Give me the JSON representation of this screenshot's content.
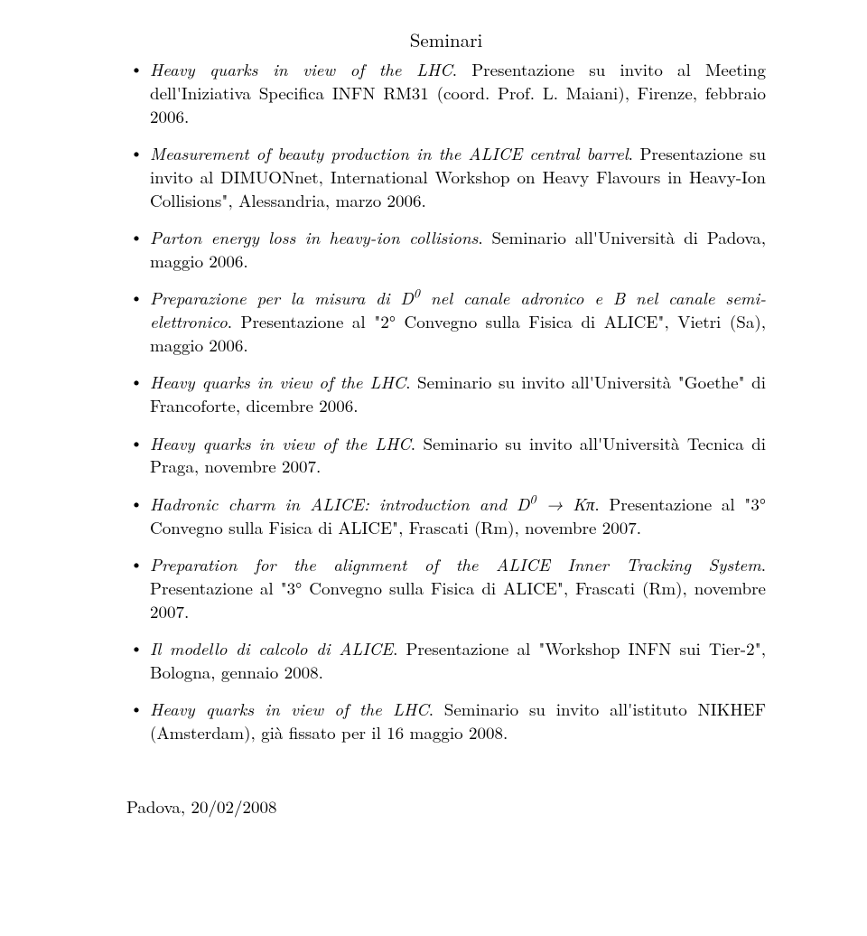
{
  "section_title": "Seminari",
  "items": [
    {
      "italic": "Heavy quarks in view of the LHC",
      "rest": ". Presentazione su invito al Meeting dell'Iniziativa Specifica INFN RM31 (coord. Prof. L. Maiani), Firenze, febbraio 2006."
    },
    {
      "italic": "Measurement of beauty production in the ALICE central barrel",
      "rest": ". Presentazione su invito al DIMUONnet, International Workshop on Heavy Flavours in Heavy-Ion Collisions\", Alessandria, marzo 2006."
    },
    {
      "italic": "Parton energy loss in heavy-ion collisions",
      "rest": ". Seminario all'Università di Padova, maggio 2006."
    },
    {
      "italic_pre": "Preparazione per la misura di D",
      "sup": "0",
      "italic_post": " nel canale adronico e B nel canale semi-elettronico",
      "rest": ". Presentazione al \"2° Convegno sulla Fisica di ALICE\", Vietri (Sa), maggio 2006."
    },
    {
      "italic": "Heavy quarks in view of the LHC",
      "rest": ". Seminario su invito all'Università \"Goethe\" di Francoforte, dicembre 2006."
    },
    {
      "italic": "Heavy quarks in view of the LHC",
      "rest": ". Seminario su invito all'Università Tecnica di Praga, novembre 2007."
    },
    {
      "italic_pre": "Hadronic charm in ALICE: introduction and D",
      "sup": "0",
      "italic_post": " → Kπ",
      "rest": ". Presentazione al \"3° Convegno sulla Fisica di ALICE\", Frascati (Rm), novembre 2007."
    },
    {
      "italic": "Preparation for the alignment of the ALICE Inner Tracking System",
      "rest": ". Presentazione al \"3° Convegno sulla Fisica di ALICE\", Frascati (Rm), novembre 2007."
    },
    {
      "italic": "Il modello di calcolo di ALICE",
      "rest": ". Presentazione al \"Workshop INFN sui Tier-2\", Bologna, gennaio 2008."
    },
    {
      "italic": "Heavy quarks in view of the LHC",
      "rest": ". Seminario su invito all'istituto NIKHEF (Amsterdam), già fissato per il 16 maggio 2008."
    }
  ],
  "footer": "Padova, 20/02/2008"
}
